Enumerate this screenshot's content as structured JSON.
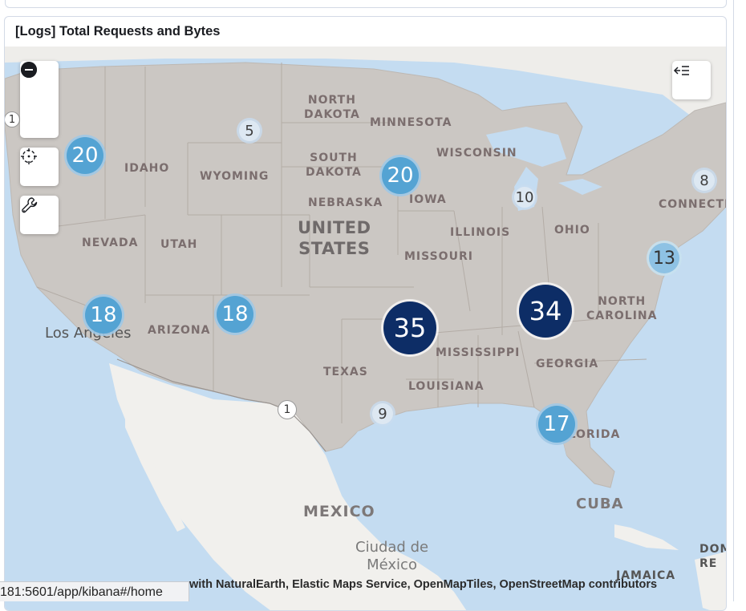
{
  "panel": {
    "title": "[Logs] Total Requests and Bytes",
    "attribution": "with NaturalEarth, Elastic Maps Service, OpenMapTiles, OpenStreetMap contributors"
  },
  "status_bar": {
    "url": "181:5601/app/kibana#/home"
  },
  "controls": {
    "zoom_in": "zoom-in-icon",
    "zoom_out": "zoom-out-icon",
    "fit": "crosshair-icon",
    "tools": "wrench-icon",
    "layers": "layer-list-collapse-icon"
  },
  "map": {
    "country_label": "UNITED\nSTATES",
    "country_mexico": "MEXICO",
    "country_cuba": "CUBA",
    "city_los_angeles": "Los Angeles",
    "city_mexico_city": "Ciudad de\nMéxico",
    "states": {
      "north_dakota": "NORTH\nDAKOTA",
      "south_dakota": "SOUTH\nDAKOTA",
      "minnesota": "MINNESOTA",
      "wisconsin": "WISCONSIN",
      "idaho": "IDAHO",
      "wyoming": "WYOMING",
      "nebraska": "NEBRASKA",
      "iowa": "IOWA",
      "illinois": "ILLINOIS",
      "ohio": "OHIO",
      "nevada": "NEVADA",
      "utah": "UTAH",
      "missouri": "MISSOURI",
      "arizona": "ARIZONA",
      "north_carolina": "NORTH\nCAROLINA",
      "mississippi": "MISSISSIPPI",
      "georgia": "GEORGIA",
      "texas": "TEXAS",
      "louisiana": "LOUISIANA",
      "florida": "FLORIDA",
      "connecticut": "CONNECTI",
      "jamaica": "JAMAICA",
      "dominican": "DOM\nRE"
    },
    "clusters": [
      {
        "id": "wa",
        "count": "20"
      },
      {
        "id": "nd",
        "count": "5"
      },
      {
        "id": "mn",
        "count": "20"
      },
      {
        "id": "mi",
        "count": "10"
      },
      {
        "id": "ne",
        "count": "8"
      },
      {
        "id": "dc",
        "count": "13"
      },
      {
        "id": "ca",
        "count": "18"
      },
      {
        "id": "az",
        "count": "18"
      },
      {
        "id": "ok",
        "count": "35"
      },
      {
        "id": "tn",
        "count": "34"
      },
      {
        "id": "tx",
        "count": "1"
      },
      {
        "id": "la",
        "count": "9"
      },
      {
        "id": "fl",
        "count": "17"
      },
      {
        "id": "edge",
        "count": "1"
      }
    ]
  }
}
